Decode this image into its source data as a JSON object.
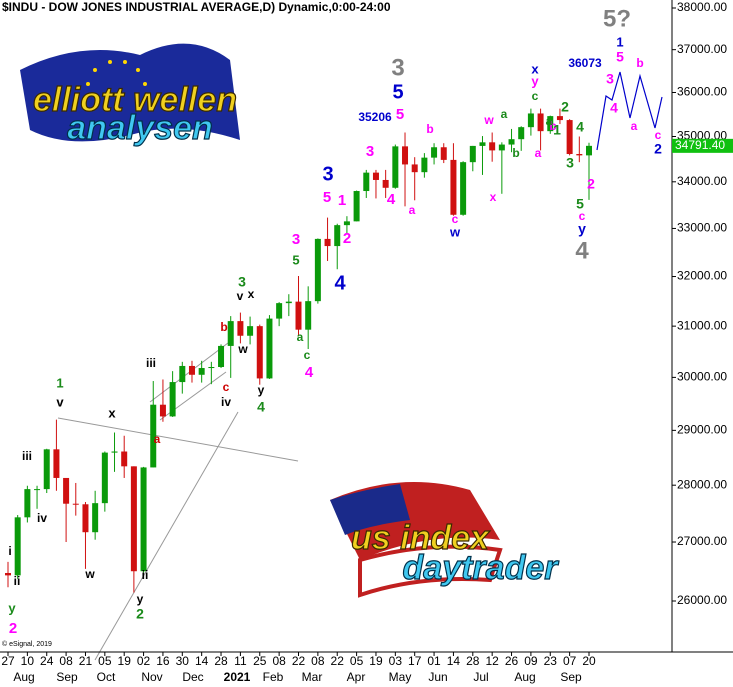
{
  "chart_data": {
    "type": "candlestick",
    "title": "$INDU - DOW JONES INDUSTRIAL AVERAGE,D) Dynamic,0:00-24:00",
    "log_scale": true,
    "up_color": "#0a9a0a",
    "down_color": "#d01010",
    "ylim": [
      25165,
      38195
    ],
    "yticks": [
      {
        "value": 38000,
        "label": "38000.00"
      },
      {
        "value": 37000,
        "label": "37000.00"
      },
      {
        "value": 36000,
        "label": "36000.00"
      },
      {
        "value": 35000,
        "label": "35000.00"
      },
      {
        "value": 34000,
        "label": "34000.00"
      },
      {
        "value": 33000,
        "label": "33000.00"
      },
      {
        "value": 32000,
        "label": "32000.00"
      },
      {
        "value": 31000,
        "label": "31000.00"
      },
      {
        "value": 30000,
        "label": "30000.00"
      },
      {
        "value": 29000,
        "label": "29000.00"
      },
      {
        "value": 28000,
        "label": "28000.00"
      },
      {
        "value": 27000,
        "label": "27000.00"
      },
      {
        "value": 26000,
        "label": "26000.00"
      }
    ],
    "x_tick_labels": [
      "27",
      "10",
      "24",
      "08",
      "21",
      "05",
      "19",
      "02",
      "16",
      "30",
      "14",
      "28",
      "11",
      "25",
      "08",
      "22",
      "08",
      "22",
      "05",
      "19",
      "03",
      "17",
      "01",
      "14",
      "28",
      "12",
      "26",
      "09",
      "23",
      "07",
      "20"
    ],
    "month_labels": [
      "Aug",
      "Sep",
      "Oct",
      "Nov",
      "Dec",
      "2021",
      "Feb",
      "Mar",
      "Apr",
      "May",
      "Jun",
      "Jul",
      "Aug",
      "Sep"
    ],
    "open": [
      26470,
      26430,
      27430,
      27930,
      27930,
      28650,
      28130,
      27670,
      27660,
      27170,
      27680,
      28590,
      28610,
      28340,
      26500,
      28320,
      29480,
      29260,
      29910,
      30220,
      30050,
      30180,
      30200,
      30610,
      31100,
      30810,
      31000,
      29980,
      31150,
      31460,
      31490,
      30930,
      31500,
      32780,
      32630,
      33070,
      33150,
      33800,
      34200,
      34040,
      33870,
      34780,
      34380,
      34210,
      34530,
      34760,
      34480,
      33290,
      34430,
      34790,
      34870,
      34690,
      34820,
      34940,
      35210,
      35520,
      35120,
      35460,
      35370,
      34610,
      34580
    ],
    "high": [
      26660,
      27470,
      27990,
      27990,
      28660,
      29200,
      28110,
      28040,
      27700,
      27900,
      28610,
      28960,
      28900,
      28340,
      28330,
      29930,
      29960,
      30120,
      30300,
      30320,
      30320,
      30300,
      30640,
      31200,
      31270,
      31190,
      31030,
      31220,
      31480,
      31640,
      32010,
      31800,
      32790,
      33230,
      33100,
      33260,
      33810,
      34260,
      34260,
      34260,
      34820,
      35090,
      34540,
      34630,
      34850,
      34850,
      34850,
      34450,
      34790,
      35010,
      35090,
      34870,
      35170,
      35230,
      35630,
      35630,
      35470,
      35630,
      35390,
      35000,
      34860
    ],
    "low": [
      26230,
      26370,
      27340,
      27580,
      27860,
      27900,
      27000,
      27460,
      26540,
      27040,
      27530,
      28240,
      28130,
      26140,
      26480,
      28320,
      29160,
      29250,
      29690,
      29900,
      29900,
      29870,
      30180,
      29990,
      30660,
      30640,
      29860,
      29970,
      31000,
      31200,
      30800,
      30550,
      31450,
      32320,
      32150,
      32900,
      33150,
      33650,
      33640,
      33650,
      33850,
      33470,
      33600,
      34090,
      34380,
      34410,
      33270,
      33270,
      34230,
      34150,
      34440,
      33740,
      34650,
      34680,
      35020,
      34690,
      35060,
      35280,
      34580,
      34430,
      33610
    ],
    "close": [
      26430,
      27430,
      27930,
      27930,
      28650,
      28130,
      27670,
      27660,
      27170,
      27680,
      28590,
      28610,
      28340,
      26500,
      28320,
      29480,
      29260,
      29910,
      30220,
      30050,
      30180,
      30200,
      30610,
      31100,
      30810,
      31000,
      29980,
      31150,
      31460,
      31490,
      30930,
      31500,
      32780,
      32630,
      33070,
      33150,
      33800,
      34200,
      34040,
      33870,
      34780,
      34380,
      34210,
      34530,
      34760,
      34480,
      33290,
      34430,
      34790,
      34870,
      34690,
      34820,
      34940,
      35210,
      35520,
      35120,
      35460,
      35370,
      34610,
      34580,
      34791.4
    ],
    "last_price": {
      "value": 34791.4,
      "label": "34791.40"
    },
    "last_price_color": "#10c010",
    "copyright": "© eSignal, 2019",
    "logo_top": [
      "elliott wellen",
      "analysen"
    ],
    "logo_bottom": [
      "us index",
      "daytrader"
    ],
    "annotations": [
      {
        "text": "1",
        "color": "#1a8a1a"
      },
      {
        "text": "v",
        "color": "#000000"
      },
      {
        "text": "x",
        "color": "#000000"
      },
      {
        "text": "iii",
        "color": "#000000"
      },
      {
        "text": "iv",
        "color": "#000000"
      },
      {
        "text": "i",
        "color": "#000000"
      },
      {
        "text": "ii",
        "color": "#000000"
      },
      {
        "text": "y",
        "color": "#1a8a1a"
      },
      {
        "text": "2",
        "color": "#ff00ff"
      },
      {
        "text": "w",
        "color": "#000000"
      },
      {
        "text": "ii",
        "color": "#000000"
      },
      {
        "text": "y",
        "color": "#000000"
      },
      {
        "text": "2",
        "color": "#1a8a1a"
      },
      {
        "text": "iii",
        "color": "#000000"
      },
      {
        "text": "a",
        "color": "#cc0000"
      },
      {
        "text": "iv",
        "color": "#000000"
      },
      {
        "text": "c",
        "color": "#cc0000"
      },
      {
        "text": "b",
        "color": "#cc0000"
      },
      {
        "text": "3",
        "color": "#1a8a1a"
      },
      {
        "text": "v",
        "color": "#000000"
      },
      {
        "text": "x",
        "color": "#000000"
      },
      {
        "text": "w",
        "color": "#000000"
      },
      {
        "text": "y",
        "color": "#000000"
      },
      {
        "text": "4",
        "color": "#1a8a1a"
      },
      {
        "text": "5",
        "color": "#1a8a1a"
      },
      {
        "text": "3",
        "color": "#ff00ff"
      },
      {
        "text": "a",
        "color": "#1a8a1a"
      },
      {
        "text": "c",
        "color": "#1a8a1a"
      },
      {
        "text": "4",
        "color": "#ff00ff"
      },
      {
        "text": "3",
        "color": "#0000cc"
      },
      {
        "text": "5",
        "color": "#ff00ff"
      },
      {
        "text": "1",
        "color": "#ff00ff"
      },
      {
        "text": "2",
        "color": "#ff00ff"
      },
      {
        "text": "4",
        "color": "#0000cc"
      },
      {
        "text": "3",
        "color": "#ff00ff"
      },
      {
        "text": "3",
        "color": "#808080"
      },
      {
        "text": "5",
        "color": "#0000cc"
      },
      {
        "text": "35206",
        "color": "#0000cc"
      },
      {
        "text": "5",
        "color": "#ff00ff"
      },
      {
        "text": "4",
        "color": "#ff00ff"
      },
      {
        "text": "a",
        "color": "#ff00ff"
      },
      {
        "text": "b",
        "color": "#ff00ff"
      },
      {
        "text": "c",
        "color": "#ff00ff"
      },
      {
        "text": "w",
        "color": "#0000cc"
      },
      {
        "text": "w",
        "color": "#ff00ff"
      },
      {
        "text": "x",
        "color": "#ff00ff"
      },
      {
        "text": "a",
        "color": "#1a8a1a"
      },
      {
        "text": "b",
        "color": "#1a8a1a"
      },
      {
        "text": "x",
        "color": "#0000cc"
      },
      {
        "text": "y",
        "color": "#ff00ff"
      },
      {
        "text": "c",
        "color": "#1a8a1a"
      },
      {
        "text": "a",
        "color": "#ff00ff"
      },
      {
        "text": "b",
        "color": "#ff00ff"
      },
      {
        "text": "2",
        "color": "#1a8a1a"
      },
      {
        "text": "a",
        "color": "#1a8a1a"
      },
      {
        "text": "1",
        "color": "#1a8a1a"
      },
      {
        "text": "4",
        "color": "#1a8a1a"
      },
      {
        "text": "3",
        "color": "#1a8a1a"
      },
      {
        "text": "36073",
        "color": "#0000cc"
      },
      {
        "text": "5?",
        "color": "#808080"
      },
      {
        "text": "1",
        "color": "#0000cc"
      },
      {
        "text": "5",
        "color": "#ff00ff"
      },
      {
        "text": "3",
        "color": "#ff00ff"
      },
      {
        "text": "4",
        "color": "#ff00ff"
      },
      {
        "text": "b",
        "color": "#ff00ff"
      },
      {
        "text": "a",
        "color": "#ff00ff"
      },
      {
        "text": "c",
        "color": "#ff00ff"
      },
      {
        "text": "2",
        "color": "#0000cc"
      },
      {
        "text": "2",
        "color": "#ff00ff"
      },
      {
        "text": "5",
        "color": "#1a8a1a"
      },
      {
        "text": "c",
        "color": "#ff00ff"
      },
      {
        "text": "y",
        "color": "#0000cc"
      },
      {
        "text": "4",
        "color": "#808080"
      }
    ]
  }
}
